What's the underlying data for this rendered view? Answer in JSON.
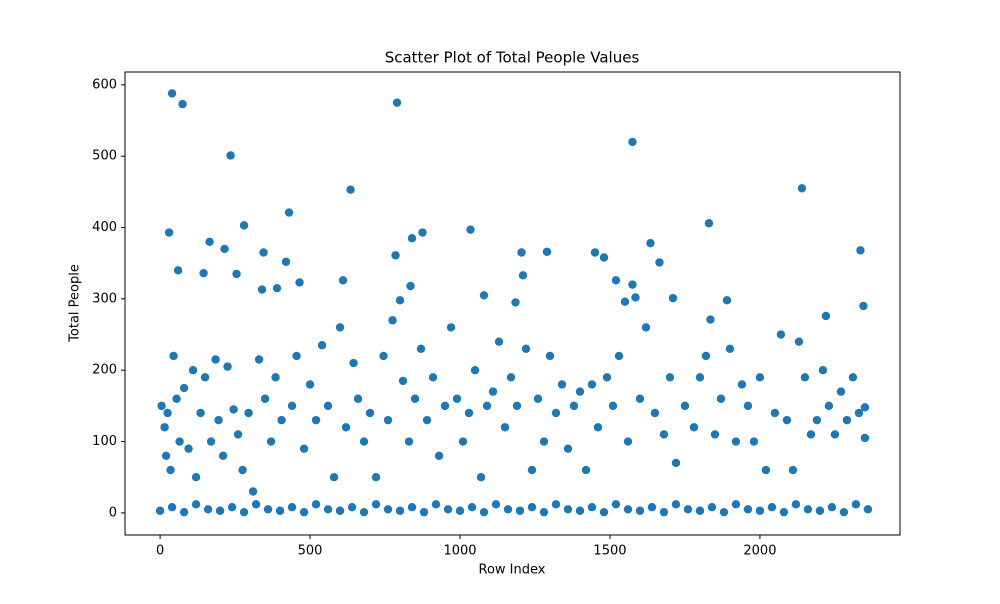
{
  "chart_data": {
    "type": "scatter",
    "title": "Scatter Plot of Total People Values",
    "x_label": "Row Index",
    "y_label": "Total People",
    "color": "#1f77b4",
    "xlim": [
      -117,
      2467
    ],
    "ylim": [
      -31,
      618
    ],
    "xticks": [
      0,
      500,
      1000,
      1500,
      2000
    ],
    "yticks": [
      0,
      100,
      200,
      300,
      400,
      500,
      600
    ],
    "grid": false,
    "x": [
      40,
      75,
      790,
      1575,
      235,
      635,
      2140,
      430,
      1830,
      280,
      1035,
      30,
      875,
      840,
      165,
      1635,
      2335,
      1205,
      1290,
      345,
      1450,
      785,
      1480,
      420,
      1665,
      215,
      60,
      610,
      1520,
      465,
      1210,
      145,
      255,
      1575,
      835,
      390,
      340,
      1710,
      1585,
      1080,
      1890,
      800,
      1550,
      1185,
      1835,
      2220,
      2345,
      5,
      15,
      20,
      25,
      35,
      45,
      55,
      65,
      80,
      95,
      110,
      120,
      135,
      150,
      170,
      185,
      195,
      210,
      225,
      245,
      260,
      275,
      295,
      310,
      330,
      350,
      370,
      385,
      405,
      440,
      455,
      480,
      500,
      520,
      540,
      560,
      580,
      600,
      620,
      645,
      660,
      680,
      700,
      720,
      745,
      760,
      775,
      810,
      830,
      850,
      870,
      890,
      910,
      930,
      950,
      970,
      990,
      1010,
      1030,
      1050,
      1070,
      1090,
      1110,
      1130,
      1150,
      1170,
      1190,
      1220,
      1240,
      1260,
      1280,
      1300,
      1320,
      1340,
      1360,
      1380,
      1400,
      1420,
      1440,
      1460,
      1490,
      1510,
      1530,
      1560,
      1600,
      1620,
      1650,
      1680,
      1700,
      1720,
      1750,
      1780,
      1800,
      1820,
      1850,
      1870,
      1900,
      1920,
      1940,
      1960,
      1980,
      2000,
      2020,
      2050,
      2070,
      2090,
      2110,
      2130,
      2150,
      2170,
      2190,
      2210,
      2230,
      2250,
      2270,
      2290,
      2310,
      2330,
      2350,
      2350,
      0,
      40,
      80,
      120,
      160,
      200,
      240,
      280,
      320,
      360,
      400,
      440,
      480,
      520,
      560,
      600,
      640,
      680,
      720,
      760,
      800,
      840,
      880,
      920,
      960,
      1000,
      1040,
      1080,
      1120,
      1160,
      1200,
      1240,
      1280,
      1320,
      1360,
      1400,
      1440,
      1480,
      1520,
      1560,
      1600,
      1640,
      1680,
      1720,
      1760,
      1800,
      1840,
      1880,
      1920,
      1960,
      2000,
      2040,
      2080,
      2120,
      2160,
      2200,
      2240,
      2280,
      2320,
      2360
    ],
    "values": [
      588,
      573,
      575,
      520,
      501,
      453,
      455,
      421,
      406,
      403,
      397,
      393,
      393,
      385,
      380,
      378,
      368,
      365,
      366,
      365,
      365,
      361,
      358,
      352,
      351,
      370,
      340,
      326,
      326,
      323,
      333,
      336,
      335,
      320,
      318,
      315,
      313,
      301,
      302,
      305,
      298,
      298,
      296,
      295,
      271,
      276,
      290,
      150,
      120,
      80,
      140,
      60,
      220,
      160,
      100,
      175,
      90,
      200,
      50,
      140,
      190,
      100,
      215,
      130,
      80,
      205,
      145,
      110,
      60,
      140,
      30,
      215,
      160,
      100,
      190,
      130,
      150,
      220,
      90,
      180,
      130,
      235,
      150,
      50,
      260,
      120,
      210,
      160,
      100,
      140,
      50,
      220,
      130,
      270,
      185,
      100,
      160,
      230,
      130,
      190,
      80,
      150,
      260,
      160,
      100,
      140,
      200,
      50,
      150,
      170,
      240,
      120,
      190,
      150,
      230,
      60,
      160,
      100,
      220,
      140,
      180,
      90,
      150,
      170,
      60,
      180,
      120,
      190,
      150,
      220,
      100,
      160,
      260,
      140,
      110,
      190,
      70,
      150,
      120,
      190,
      220,
      110,
      160,
      230,
      100,
      180,
      150,
      100,
      190,
      60,
      140,
      250,
      130,
      60,
      240,
      190,
      110,
      130,
      200,
      150,
      110,
      170,
      130,
      190,
      140,
      105,
      148,
      3,
      8,
      1,
      12,
      5,
      3,
      8,
      1,
      12,
      5,
      3,
      8,
      1,
      12,
      5,
      3,
      8,
      1,
      12,
      5,
      3,
      8,
      1,
      12,
      5,
      3,
      8,
      1,
      12,
      5,
      3,
      8,
      1,
      12,
      5,
      3,
      8,
      1,
      12,
      5,
      3,
      8,
      1,
      12,
      5,
      3,
      8,
      1,
      12,
      5,
      3,
      8,
      1,
      12,
      5,
      3,
      8,
      1,
      12,
      5
    ]
  }
}
